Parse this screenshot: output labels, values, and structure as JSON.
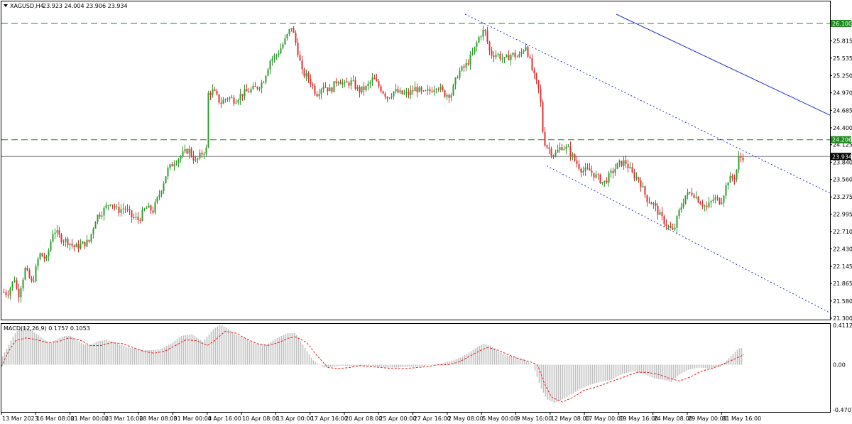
{
  "header": {
    "symbol": "XAGUSD,H4",
    "ohlc": "23.923 24.004 23.906 23.934",
    "macd_label": "MACD(12,26,9) 0.1757 0.1053"
  },
  "colors": {
    "bull": "#2e9e2e",
    "bear": "#e03030",
    "hline": "#1f8a1f",
    "channel": "#1a2fd0",
    "trend": "#1a2fd0",
    "macd_hist": "#c0c0c0",
    "macd_signal": "#e02020",
    "current": "#808080"
  },
  "chart_data": [
    {
      "type": "candlestick",
      "title": "XAGUSD,H4",
      "ylim": [
        21.3,
        26.25
      ],
      "y_ticks": [
        "26.100",
        "25.815",
        "25.535",
        "25.250",
        "24.970",
        "24.685",
        "24.400",
        "24.125",
        "23.840",
        "23.560",
        "23.275",
        "22.995",
        "22.710",
        "22.430",
        "22.145",
        "21.865",
        "21.580",
        "21.300"
      ],
      "x_ticks": [
        "13 Mar 2023",
        "16 Mar 08:00",
        "21 Mar 00:00",
        "23 Mar 16:00",
        "28 Mar 08:00",
        "31 Mar 00:00",
        "4 Apr 16:00",
        "10 Apr 08:00",
        "13 Apr 00:00",
        "17 Apr 16:00",
        "20 Apr 08:00",
        "25 Apr 00:00",
        "27 Apr 16:00",
        "2 May 08:00",
        "5 May 00:00",
        "9 May 16:00",
        "12 May 08:00",
        "17 May 00:00",
        "19 May 16:00",
        "24 May 08:00",
        "29 May 00:00",
        "31 May 16:00"
      ],
      "horizontal_levels": [
        {
          "value": 26.1,
          "label": "26.100"
        },
        {
          "value": 24.206,
          "label": "24.206"
        }
      ],
      "current_price": {
        "value": 23.934,
        "label": "23.934"
      },
      "close_path": [
        [
          0,
          21.75
        ],
        [
          10,
          21.7
        ],
        [
          20,
          21.95
        ],
        [
          25,
          21.65
        ],
        [
          35,
          22.1
        ],
        [
          45,
          21.85
        ],
        [
          55,
          22.35
        ],
        [
          65,
          22.25
        ],
        [
          75,
          22.75
        ],
        [
          85,
          22.6
        ],
        [
          95,
          22.55
        ],
        [
          105,
          22.45
        ],
        [
          115,
          22.5
        ],
        [
          125,
          22.55
        ],
        [
          135,
          22.95
        ],
        [
          145,
          23.05
        ],
        [
          155,
          23.2
        ],
        [
          165,
          23.05
        ],
        [
          175,
          23.1
        ],
        [
          185,
          22.95
        ],
        [
          195,
          22.9
        ],
        [
          205,
          23.1
        ],
        [
          215,
          23.05
        ],
        [
          225,
          23.35
        ],
        [
          235,
          23.7
        ],
        [
          245,
          23.85
        ],
        [
          255,
          23.95
        ],
        [
          265,
          24.05
        ],
        [
          275,
          23.85
        ],
        [
          285,
          24.0
        ],
        [
          290,
          24.05
        ],
        [
          292,
          24.95
        ],
        [
          300,
          25.0
        ],
        [
          310,
          24.8
        ],
        [
          320,
          24.9
        ],
        [
          330,
          24.85
        ],
        [
          340,
          24.95
        ],
        [
          350,
          25.0
        ],
        [
          360,
          25.05
        ],
        [
          370,
          25.15
        ],
        [
          380,
          25.5
        ],
        [
          390,
          25.6
        ],
        [
          400,
          25.8
        ],
        [
          410,
          26.05
        ],
        [
          418,
          25.7
        ],
        [
          425,
          25.3
        ],
        [
          435,
          25.2
        ],
        [
          445,
          24.95
        ],
        [
          455,
          25.1
        ],
        [
          465,
          25.0
        ],
        [
          475,
          25.2
        ],
        [
          485,
          25.1
        ],
        [
          495,
          25.15
        ],
        [
          505,
          25.0
        ],
        [
          515,
          25.05
        ],
        [
          525,
          25.2
        ],
        [
          535,
          25.05
        ],
        [
          545,
          24.9
        ],
        [
          555,
          25.0
        ],
        [
          565,
          24.95
        ],
        [
          575,
          24.95
        ],
        [
          585,
          25.05
        ],
        [
          595,
          24.95
        ],
        [
          605,
          25.0
        ],
        [
          615,
          25.1
        ],
        [
          625,
          24.95
        ],
        [
          635,
          24.95
        ],
        [
          645,
          25.3
        ],
        [
          655,
          25.4
        ],
        [
          665,
          25.6
        ],
        [
          675,
          25.9
        ],
        [
          682,
          26.0
        ],
        [
          690,
          25.6
        ],
        [
          700,
          25.6
        ],
        [
          710,
          25.5
        ],
        [
          720,
          25.6
        ],
        [
          730,
          25.55
        ],
        [
          740,
          25.75
        ],
        [
          750,
          25.3
        ],
        [
          760,
          24.95
        ],
        [
          765,
          24.2
        ],
        [
          770,
          24.1
        ],
        [
          780,
          23.95
        ],
        [
          790,
          24.1
        ],
        [
          800,
          24.05
        ],
        [
          810,
          23.85
        ],
        [
          820,
          23.7
        ],
        [
          830,
          23.7
        ],
        [
          840,
          23.6
        ],
        [
          850,
          23.5
        ],
        [
          860,
          23.65
        ],
        [
          870,
          23.8
        ],
        [
          880,
          23.85
        ],
        [
          890,
          23.65
        ],
        [
          900,
          23.55
        ],
        [
          910,
          23.25
        ],
        [
          920,
          23.15
        ],
        [
          930,
          22.95
        ],
        [
          940,
          22.8
        ],
        [
          948,
          22.7
        ],
        [
          955,
          23.0
        ],
        [
          965,
          23.3
        ],
        [
          975,
          23.35
        ],
        [
          985,
          23.2
        ],
        [
          995,
          23.1
        ],
        [
          1005,
          23.25
        ],
        [
          1015,
          23.2
        ],
        [
          1025,
          23.55
        ],
        [
          1035,
          23.6
        ],
        [
          1040,
          23.9
        ],
        [
          1046,
          23.93
        ]
      ],
      "channel_lines": [
        {
          "from": [
            655,
            26.25
          ],
          "to": [
            1170,
            23.33
          ]
        },
        {
          "from": [
            770,
            23.78
          ],
          "to": [
            1170,
            21.38
          ]
        }
      ],
      "trend_line": {
        "from": [
          868,
          26.25
        ],
        "to": [
          1170,
          24.6
        ]
      }
    },
    {
      "type": "bar",
      "title": "MACD(12,26,9) 0.1757 0.1053",
      "ylim": [
        -0.4707,
        0.4112
      ],
      "y_ticks": [
        "0.4112",
        "0.00",
        "-0.4707"
      ],
      "histogram_path": [
        [
          0,
          0.05
        ],
        [
          10,
          0.18
        ],
        [
          20,
          0.32
        ],
        [
          30,
          0.4
        ],
        [
          40,
          0.38
        ],
        [
          55,
          0.3
        ],
        [
          70,
          0.22
        ],
        [
          80,
          0.27
        ],
        [
          90,
          0.3
        ],
        [
          100,
          0.3
        ],
        [
          115,
          0.22
        ],
        [
          125,
          0.2
        ],
        [
          135,
          0.24
        ],
        [
          150,
          0.26
        ],
        [
          165,
          0.22
        ],
        [
          180,
          0.18
        ],
        [
          195,
          0.16
        ],
        [
          210,
          0.15
        ],
        [
          225,
          0.16
        ],
        [
          240,
          0.22
        ],
        [
          255,
          0.3
        ],
        [
          270,
          0.32
        ],
        [
          285,
          0.24
        ],
        [
          292,
          0.3
        ],
        [
          300,
          0.37
        ],
        [
          310,
          0.42
        ],
        [
          320,
          0.38
        ],
        [
          330,
          0.32
        ],
        [
          345,
          0.27
        ],
        [
          360,
          0.22
        ],
        [
          375,
          0.21
        ],
        [
          390,
          0.28
        ],
        [
          405,
          0.33
        ],
        [
          415,
          0.33
        ],
        [
          425,
          0.22
        ],
        [
          440,
          0.05
        ],
        [
          455,
          -0.03
        ],
        [
          470,
          -0.02
        ],
        [
          485,
          -0.01
        ],
        [
          500,
          -0.02
        ],
        [
          515,
          -0.01
        ],
        [
          530,
          -0.02
        ],
        [
          545,
          -0.03
        ],
        [
          560,
          -0.03
        ],
        [
          575,
          -0.02
        ],
        [
          590,
          -0.02
        ],
        [
          605,
          0.0
        ],
        [
          620,
          0.01
        ],
        [
          635,
          0.04
        ],
        [
          650,
          0.08
        ],
        [
          665,
          0.15
        ],
        [
          680,
          0.22
        ],
        [
          690,
          0.2
        ],
        [
          700,
          0.15
        ],
        [
          710,
          0.1
        ],
        [
          720,
          0.09
        ],
        [
          735,
          0.06
        ],
        [
          750,
          0.0
        ],
        [
          762,
          -0.25
        ],
        [
          770,
          -0.36
        ],
        [
          780,
          -0.4
        ],
        [
          790,
          -0.37
        ],
        [
          800,
          -0.33
        ],
        [
          815,
          -0.26
        ],
        [
          830,
          -0.21
        ],
        [
          845,
          -0.18
        ],
        [
          860,
          -0.16
        ],
        [
          875,
          -0.1
        ],
        [
          890,
          -0.07
        ],
        [
          905,
          -0.09
        ],
        [
          920,
          -0.14
        ],
        [
          935,
          -0.16
        ],
        [
          945,
          -0.18
        ],
        [
          955,
          -0.11
        ],
        [
          970,
          -0.05
        ],
        [
          985,
          -0.03
        ],
        [
          1000,
          -0.04
        ],
        [
          1015,
          -0.02
        ],
        [
          1030,
          0.1
        ],
        [
          1040,
          0.17
        ],
        [
          1046,
          0.175
        ]
      ],
      "signal_path": [
        [
          0,
          -0.02
        ],
        [
          10,
          0.14
        ],
        [
          20,
          0.25
        ],
        [
          35,
          0.28
        ],
        [
          50,
          0.26
        ],
        [
          65,
          0.23
        ],
        [
          80,
          0.24
        ],
        [
          95,
          0.28
        ],
        [
          110,
          0.26
        ],
        [
          125,
          0.2
        ],
        [
          140,
          0.2
        ],
        [
          155,
          0.23
        ],
        [
          170,
          0.22
        ],
        [
          185,
          0.18
        ],
        [
          200,
          0.14
        ],
        [
          215,
          0.12
        ],
        [
          230,
          0.14
        ],
        [
          245,
          0.2
        ],
        [
          260,
          0.26
        ],
        [
          275,
          0.25
        ],
        [
          290,
          0.2
        ],
        [
          300,
          0.25
        ],
        [
          315,
          0.35
        ],
        [
          330,
          0.33
        ],
        [
          345,
          0.27
        ],
        [
          360,
          0.22
        ],
        [
          375,
          0.2
        ],
        [
          390,
          0.23
        ],
        [
          405,
          0.28
        ],
        [
          415,
          0.29
        ],
        [
          430,
          0.23
        ],
        [
          445,
          0.09
        ],
        [
          460,
          -0.03
        ],
        [
          475,
          -0.04
        ],
        [
          490,
          -0.03
        ],
        [
          505,
          -0.01
        ],
        [
          520,
          -0.02
        ],
        [
          535,
          -0.03
        ],
        [
          550,
          -0.04
        ],
        [
          570,
          -0.04
        ],
        [
          585,
          -0.03
        ],
        [
          600,
          -0.02
        ],
        [
          615,
          0.0
        ],
        [
          630,
          0.0
        ],
        [
          645,
          0.03
        ],
        [
          660,
          0.09
        ],
        [
          675,
          0.15
        ],
        [
          685,
          0.18
        ],
        [
          700,
          0.15
        ],
        [
          715,
          0.1
        ],
        [
          730,
          0.06
        ],
        [
          745,
          0.03
        ],
        [
          755,
          0.0
        ],
        [
          765,
          -0.2
        ],
        [
          775,
          -0.34
        ],
        [
          790,
          -0.39
        ],
        [
          805,
          -0.34
        ],
        [
          820,
          -0.27
        ],
        [
          835,
          -0.24
        ],
        [
          850,
          -0.2
        ],
        [
          865,
          -0.16
        ],
        [
          880,
          -0.12
        ],
        [
          895,
          -0.08
        ],
        [
          910,
          -0.08
        ],
        [
          925,
          -0.1
        ],
        [
          940,
          -0.14
        ],
        [
          955,
          -0.17
        ],
        [
          970,
          -0.13
        ],
        [
          985,
          -0.07
        ],
        [
          1000,
          -0.04
        ],
        [
          1015,
          0.0
        ],
        [
          1030,
          0.05
        ],
        [
          1046,
          0.105
        ]
      ]
    }
  ]
}
